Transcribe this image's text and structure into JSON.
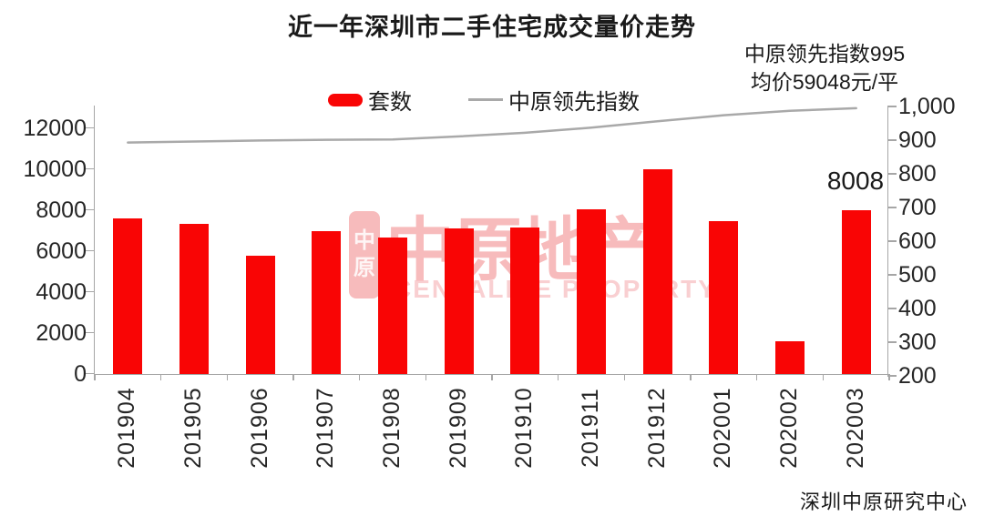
{
  "title": "近一年深圳市二手住宅成交量价走势",
  "annotations": {
    "index_note": "中原领先指数995",
    "price_note": "均价59048元/平",
    "last_bar_label": "8008",
    "source": "深圳中原研究中心"
  },
  "legend": [
    {
      "label": "套数",
      "type": "bar",
      "color": "#f90505"
    },
    {
      "label": "中原领先指数",
      "type": "line",
      "color": "#a9a9a9"
    }
  ],
  "watermark": {
    "seal_char_1": "中",
    "seal_char_2": "原",
    "cn": "中原地产",
    "en": "CENTALINE PROPERTY"
  },
  "chart_data": {
    "type": "bar",
    "title": "近一年深圳市二手住宅成交量价走势",
    "categories": [
      "201904",
      "201905",
      "201906",
      "201907",
      "201908",
      "201909",
      "201910",
      "201911",
      "201912",
      "202001",
      "202002",
      "202003"
    ],
    "series": [
      {
        "name": "套数",
        "kind": "bar",
        "axis": "left",
        "color": "#f90505",
        "values": [
          7600,
          7350,
          5800,
          7000,
          6650,
          7100,
          7150,
          8050,
          9980,
          7480,
          1580,
          8008
        ]
      },
      {
        "name": "中原领先指数",
        "kind": "line",
        "axis": "right",
        "color": "#a9a9a9",
        "values": [
          893,
          896,
          899,
          901,
          902,
          911,
          922,
          937,
          956,
          974,
          987,
          995
        ]
      }
    ],
    "left_axis": {
      "min": 0,
      "max": 12000,
      "step": 2000,
      "labels": [
        "0",
        "2000",
        "4000",
        "6000",
        "8000",
        "10000",
        "12000"
      ]
    },
    "right_axis": {
      "min": 200,
      "max": 1000,
      "step": 100,
      "labels": [
        "200",
        "300",
        "400",
        "500",
        "600",
        "700",
        "800",
        "900",
        "1,000"
      ]
    },
    "grid": false,
    "legend_position": "top"
  }
}
